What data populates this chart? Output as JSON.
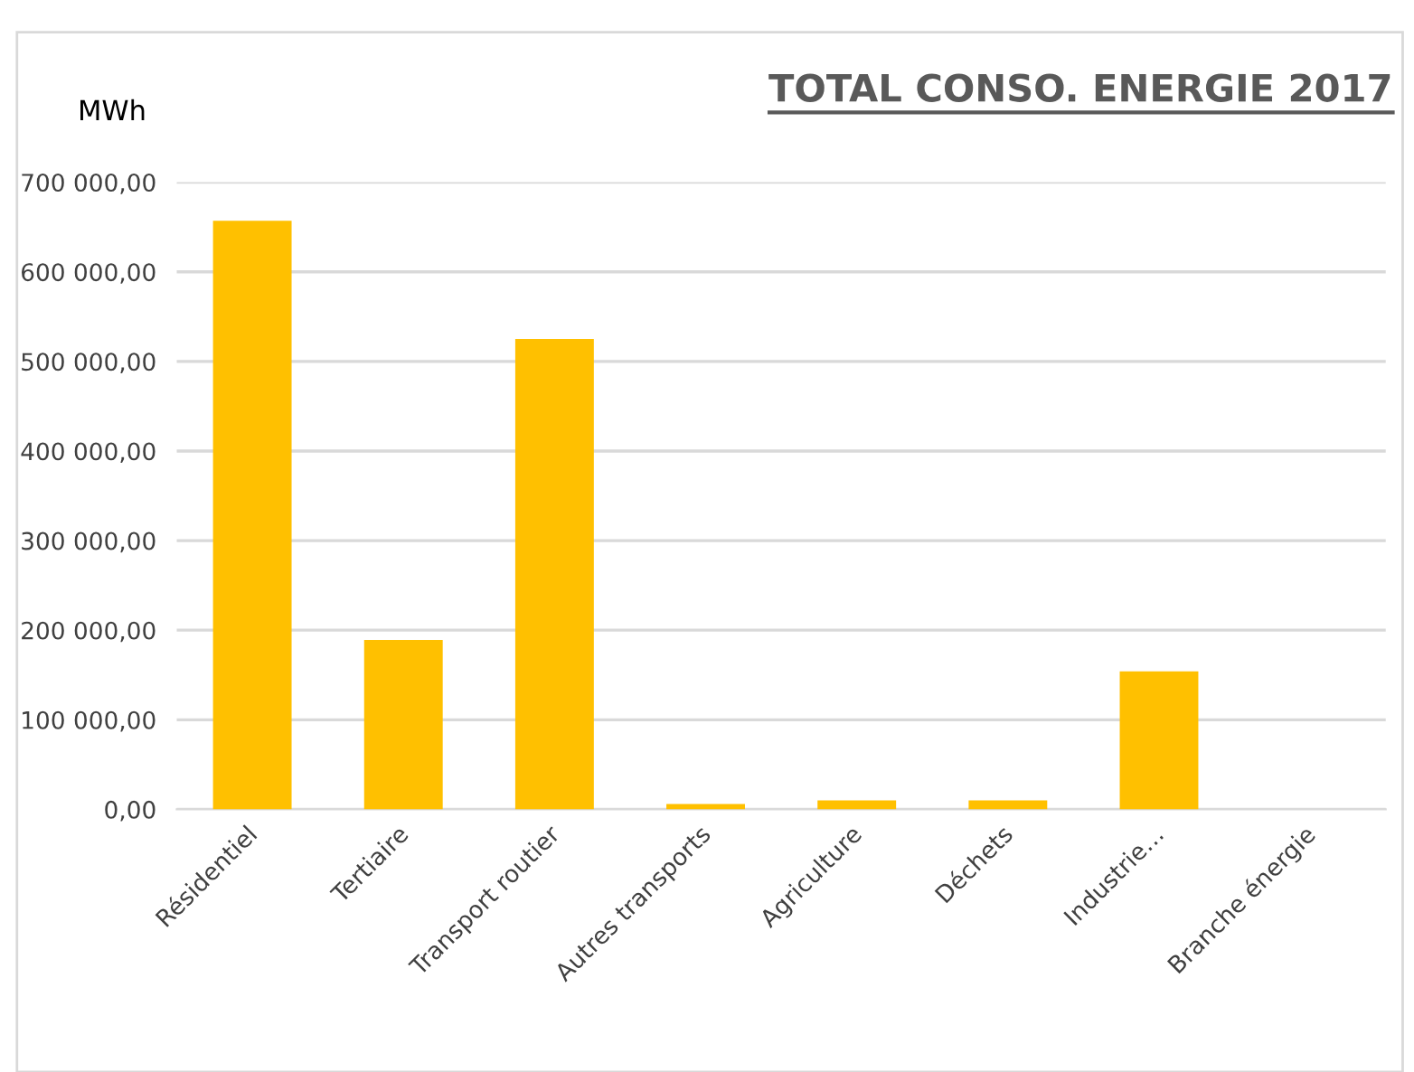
{
  "chart_data": {
    "type": "bar",
    "title": "TOTAL CONSO. ENERGIE 2017",
    "ylabel": "MWh",
    "categories": [
      "Résidentiel",
      "Tertiaire",
      "Transport routier",
      "Autres transports",
      "Agriculture",
      "Déchets",
      "Industrie…",
      "Branche énergie"
    ],
    "values": [
      657000,
      189000,
      525000,
      6000,
      10000,
      10000,
      154000,
      null
    ],
    "colors": [
      "#ffc000",
      "#ffc000",
      "#ffc000",
      "#ffc000",
      "#ffc000",
      "#ffc000",
      "#ffc000",
      "#f2f2f2"
    ],
    "ylim": [
      0,
      700000
    ],
    "yticks": [
      {
        "value": 0,
        "label": "0,00"
      },
      {
        "value": 100000,
        "label": "100 000,00"
      },
      {
        "value": 200000,
        "label": "200 000,00"
      },
      {
        "value": 300000,
        "label": "300 000,00"
      },
      {
        "value": 400000,
        "label": "400 000,00"
      },
      {
        "value": 500000,
        "label": "500 000,00"
      },
      {
        "value": 600000,
        "label": "600 000,00"
      },
      {
        "value": 700000,
        "label": "700 000,00"
      }
    ],
    "grid": "y",
    "legend": false
  }
}
